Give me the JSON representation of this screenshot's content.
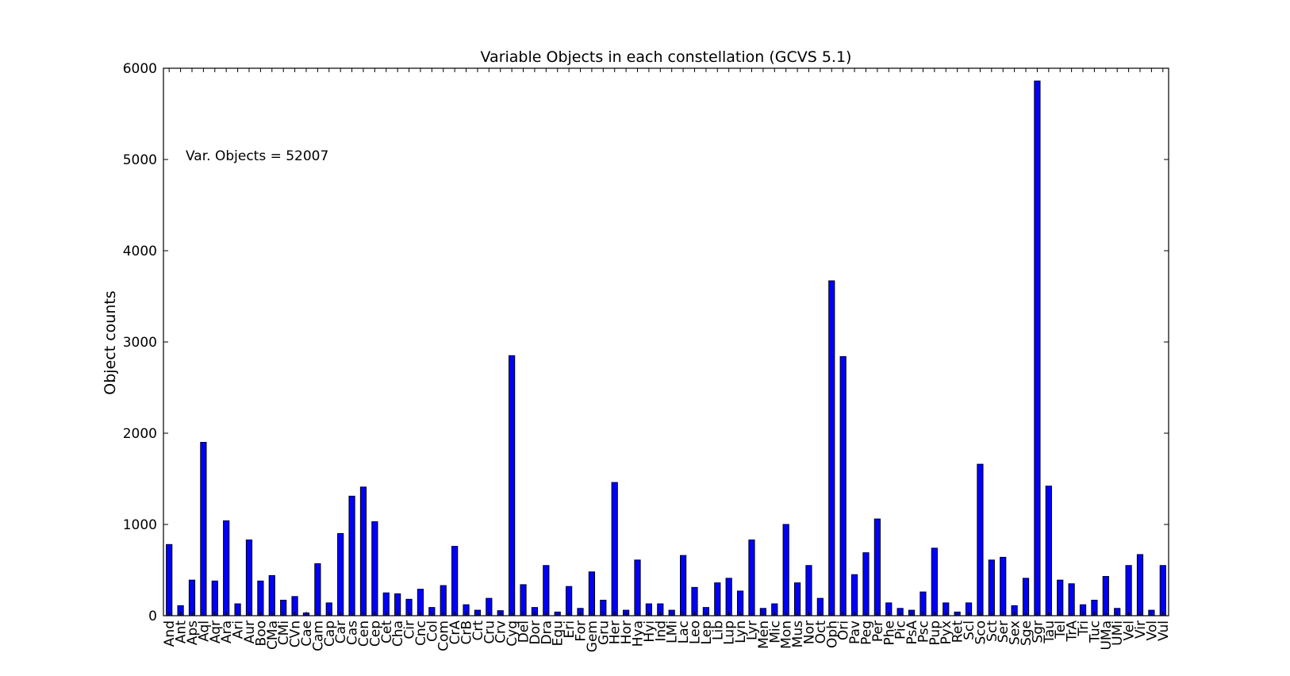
{
  "chart_data": {
    "type": "bar",
    "title": "Variable Objects in each constellation (GCVS 5.1)",
    "xlabel": "",
    "ylabel": "Object counts",
    "annotation": "Var. Objects = 52007",
    "ylim": [
      0,
      6000
    ],
    "yticks": [
      0,
      1000,
      2000,
      3000,
      4000,
      5000,
      6000
    ],
    "bar_color": "#0000ff",
    "grid": false,
    "categories": [
      "And",
      "Ant",
      "Aps",
      "Aql",
      "Aqr",
      "Ara",
      "Ari",
      "Aur",
      "Boo",
      "CMa",
      "CMi",
      "CVn",
      "Cae",
      "Cam",
      "Cap",
      "Car",
      "Cas",
      "Cen",
      "Cep",
      "Cet",
      "Cha",
      "Cir",
      "Cnc",
      "Col",
      "Com",
      "CrA",
      "CrB",
      "Crt",
      "Cru",
      "Crv",
      "Cyg",
      "Del",
      "Dor",
      "Dra",
      "Equ",
      "Eri",
      "For",
      "Gem",
      "Gru",
      "Her",
      "Hor",
      "Hya",
      "Hyi",
      "Ind",
      "LMi",
      "Lac",
      "Leo",
      "Lep",
      "Lib",
      "Lup",
      "Lyn",
      "Lyr",
      "Men",
      "Mic",
      "Mon",
      "Mus",
      "Nor",
      "Oct",
      "Oph",
      "Ori",
      "Pav",
      "Peg",
      "Per",
      "Phe",
      "Pic",
      "PsA",
      "Psc",
      "Pup",
      "Pyx",
      "Ret",
      "Scl",
      "Sco",
      "Sct",
      "Ser",
      "Sex",
      "Sge",
      "Sgr",
      "Tau",
      "Tel",
      "TrA",
      "Tri",
      "Tuc",
      "UMa",
      "UMi",
      "Vel",
      "Vir",
      "Vol",
      "Vul"
    ],
    "values": [
      780,
      110,
      390,
      1900,
      380,
      1040,
      130,
      830,
      380,
      440,
      170,
      210,
      30,
      570,
      140,
      900,
      1310,
      1410,
      1030,
      250,
      240,
      180,
      290,
      90,
      330,
      760,
      120,
      60,
      190,
      55,
      2850,
      340,
      90,
      550,
      40,
      320,
      80,
      480,
      170,
      1460,
      60,
      610,
      130,
      130,
      60,
      660,
      310,
      90,
      360,
      410,
      270,
      830,
      80,
      130,
      1000,
      360,
      550,
      190,
      3670,
      2840,
      450,
      690,
      1060,
      140,
      80,
      60,
      260,
      740,
      140,
      40,
      140,
      1660,
      610,
      640,
      110,
      410,
      5860,
      1420,
      390,
      350,
      120,
      170,
      430,
      80,
      550,
      670,
      60,
      550
    ]
  }
}
